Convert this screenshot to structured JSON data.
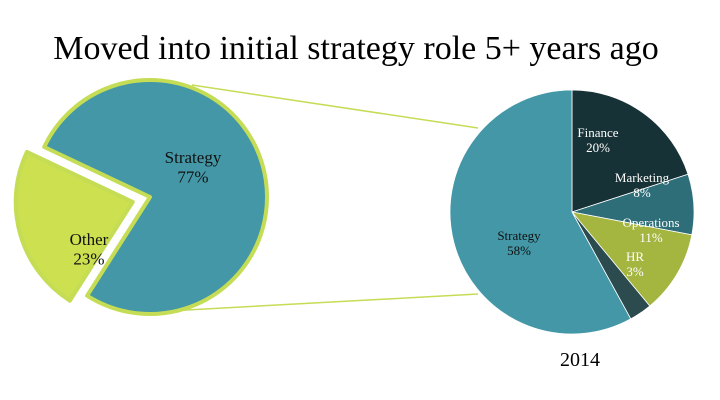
{
  "title": "Moved into initial strategy role 5+ years ago",
  "chart_data": [
    {
      "type": "pie",
      "caption": "",
      "slices": [
        {
          "label": "Strategy",
          "value": 77,
          "value_label": "77%",
          "color": "#4397a6"
        },
        {
          "label": "Other",
          "value": 23,
          "value_label": "23%",
          "color": "#cde04f",
          "exploded": true
        }
      ],
      "outline_color": "#c5dc55",
      "expands_slice": "Strategy"
    },
    {
      "type": "pie",
      "caption": "2014",
      "slices": [
        {
          "label": "Finance",
          "value": 20,
          "value_label": "20%",
          "color": "#173236"
        },
        {
          "label": "Marketing",
          "value": 8,
          "value_label": "8%",
          "color": "#2e6e78"
        },
        {
          "label": "Operations",
          "value": 11,
          "value_label": "11%",
          "color": "#a4b540"
        },
        {
          "label": "HR",
          "value": 3,
          "value_label": "3%",
          "color": "#2b4b4f"
        },
        {
          "label": "Strategy",
          "value": 58,
          "value_label": "58%",
          "color": "#4397a6"
        }
      ]
    }
  ],
  "colors": {
    "connector": "#c5dc55"
  }
}
